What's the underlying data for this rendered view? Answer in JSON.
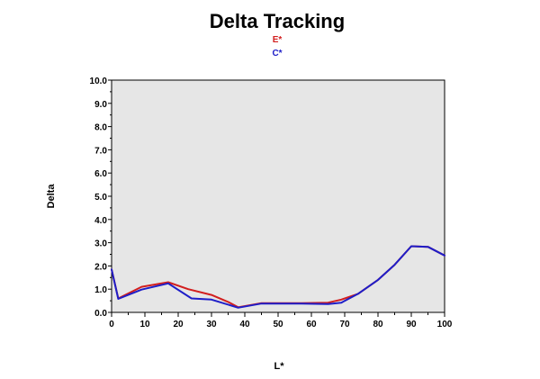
{
  "chart_data": {
    "type": "line",
    "title": "Delta Tracking",
    "xlabel": "L*",
    "ylabel": "Delta",
    "xlim": [
      0,
      100
    ],
    "ylim": [
      0,
      10
    ],
    "x_ticks": [
      "0",
      "10",
      "20",
      "30",
      "40",
      "50",
      "60",
      "70",
      "80",
      "90",
      "100"
    ],
    "y_ticks": [
      "0.0",
      "1.0",
      "2.0",
      "3.0",
      "4.0",
      "5.0",
      "6.0",
      "7.0",
      "8.0",
      "9.0",
      "10.0"
    ],
    "grid": false,
    "legend_position": "top-center",
    "plot_background": "#e6e6e6",
    "series": [
      {
        "name": "E*",
        "color": "#d21e1e",
        "points": [
          [
            0,
            1.85
          ],
          [
            2,
            0.6
          ],
          [
            9,
            1.1
          ],
          [
            17,
            1.3
          ],
          [
            23,
            1.0
          ],
          [
            30,
            0.75
          ],
          [
            35,
            0.45
          ],
          [
            38,
            0.22
          ],
          [
            45,
            0.4
          ],
          [
            57,
            0.4
          ],
          [
            65,
            0.42
          ],
          [
            69,
            0.55
          ],
          [
            74,
            0.8
          ],
          [
            80,
            1.4
          ],
          [
            85,
            2.05
          ],
          [
            90,
            2.85
          ],
          [
            95,
            2.82
          ],
          [
            100,
            2.45
          ]
        ]
      },
      {
        "name": "C*",
        "color": "#1e1ec8",
        "points": [
          [
            0,
            1.85
          ],
          [
            2,
            0.58
          ],
          [
            9,
            0.98
          ],
          [
            17,
            1.25
          ],
          [
            24,
            0.6
          ],
          [
            30,
            0.55
          ],
          [
            38,
            0.2
          ],
          [
            45,
            0.38
          ],
          [
            57,
            0.38
          ],
          [
            65,
            0.36
          ],
          [
            69,
            0.42
          ],
          [
            74,
            0.8
          ],
          [
            80,
            1.4
          ],
          [
            85,
            2.05
          ],
          [
            90,
            2.85
          ],
          [
            95,
            2.82
          ],
          [
            100,
            2.45
          ]
        ]
      }
    ]
  }
}
